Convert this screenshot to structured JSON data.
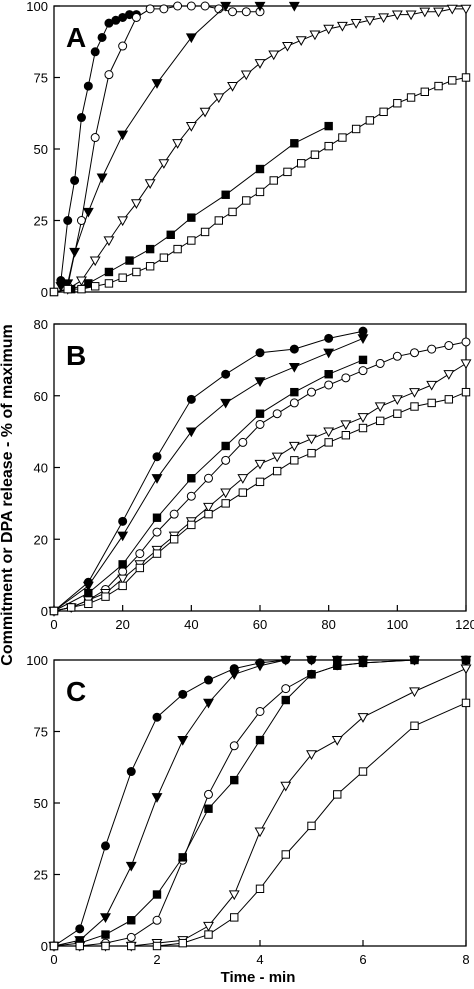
{
  "figure": {
    "ylabel": "Commitment or DPA release - % of maximum",
    "xlabel": "Time - min"
  },
  "chart_data": [
    {
      "type": "line",
      "panel_label": "A",
      "xlim": [
        0,
        120
      ],
      "ylim": [
        0,
        100
      ],
      "xticks": [],
      "yticks": [
        0,
        25,
        50,
        75,
        100
      ],
      "series": [
        {
          "marker": "filled-circle",
          "x": [
            2,
            4,
            6,
            8,
            10,
            12,
            14,
            16,
            18,
            20,
            22,
            24
          ],
          "y": [
            4,
            25,
            39,
            61,
            72,
            84,
            89,
            94,
            95,
            96,
            97,
            97
          ]
        },
        {
          "marker": "open-circle",
          "x": [
            4,
            8,
            12,
            16,
            20,
            24,
            28,
            32,
            36,
            40,
            44,
            48,
            52,
            56,
            60
          ],
          "y": [
            2,
            25,
            54,
            76,
            86,
            96,
            99,
            99,
            100,
            100,
            100,
            99,
            98,
            98,
            98
          ]
        },
        {
          "marker": "filled-triangle",
          "x": [
            2,
            4,
            6,
            10,
            14,
            20,
            30,
            40,
            50,
            60,
            70
          ],
          "y": [
            2,
            3,
            14,
            28,
            40,
            55,
            73,
            89,
            100,
            104,
            106
          ]
        },
        {
          "marker": "open-triangle",
          "x": [
            4,
            8,
            12,
            16,
            20,
            24,
            28,
            32,
            36,
            40,
            44,
            48,
            52,
            56,
            60,
            64,
            68,
            72,
            76,
            80,
            84,
            88,
            92,
            96,
            100,
            104,
            108,
            112,
            116,
            120
          ],
          "y": [
            1,
            4,
            11,
            18,
            25,
            31,
            38,
            45,
            52,
            58,
            63,
            68,
            72,
            76,
            80,
            83,
            86,
            88,
            90,
            92,
            93,
            94,
            95,
            96,
            97,
            97,
            98,
            98,
            99,
            99
          ]
        },
        {
          "marker": "filled-square",
          "x": [
            0,
            5,
            10,
            16,
            22,
            28,
            34,
            40,
            50,
            60,
            70,
            80
          ],
          "y": [
            0,
            1,
            3,
            7,
            11,
            15,
            20,
            26,
            34,
            43,
            52,
            58
          ]
        },
        {
          "marker": "open-square",
          "x": [
            0,
            4,
            8,
            12,
            16,
            20,
            24,
            28,
            32,
            36,
            40,
            44,
            48,
            52,
            56,
            60,
            64,
            68,
            72,
            76,
            80,
            84,
            88,
            92,
            96,
            100,
            104,
            108,
            112,
            116,
            120
          ],
          "y": [
            0,
            1,
            1,
            2,
            3,
            5,
            7,
            9,
            12,
            15,
            18,
            21,
            25,
            28,
            32,
            35,
            39,
            42,
            45,
            48,
            51,
            54,
            57,
            60,
            63,
            66,
            68,
            70,
            72,
            74,
            75
          ]
        }
      ]
    },
    {
      "type": "line",
      "panel_label": "B",
      "xlim": [
        0,
        120
      ],
      "ylim": [
        0,
        80
      ],
      "xticks": [
        0,
        20,
        40,
        60,
        80,
        100,
        120
      ],
      "yticks": [
        0,
        20,
        40,
        60,
        80
      ],
      "series": [
        {
          "marker": "filled-circle",
          "x": [
            0,
            10,
            20,
            30,
            40,
            50,
            60,
            70,
            80,
            90
          ],
          "y": [
            0,
            8,
            25,
            43,
            59,
            66,
            72,
            73,
            76,
            78
          ]
        },
        {
          "marker": "open-circle",
          "x": [
            0,
            5,
            10,
            15,
            20,
            25,
            30,
            35,
            40,
            45,
            50,
            55,
            60,
            65,
            70,
            75,
            80,
            85,
            90,
            95,
            100,
            105,
            110,
            115,
            120
          ],
          "y": [
            0,
            1,
            3,
            6,
            11,
            16,
            22,
            27,
            32,
            37,
            42,
            47,
            52,
            55,
            58,
            61,
            63,
            65,
            67,
            69,
            71,
            72,
            73,
            74,
            75
          ]
        },
        {
          "marker": "filled-triangle",
          "x": [
            0,
            10,
            20,
            30,
            40,
            50,
            60,
            70,
            80,
            90
          ],
          "y": [
            0,
            7,
            21,
            37,
            50,
            58,
            64,
            68,
            72,
            76
          ]
        },
        {
          "marker": "open-triangle",
          "x": [
            0,
            5,
            10,
            15,
            20,
            25,
            30,
            35,
            40,
            45,
            50,
            55,
            60,
            65,
            70,
            75,
            80,
            85,
            90,
            95,
            100,
            105,
            110,
            115,
            120
          ],
          "y": [
            0,
            1,
            3,
            5,
            9,
            13,
            17,
            21,
            25,
            29,
            33,
            37,
            41,
            43,
            46,
            48,
            50,
            52,
            54,
            57,
            59,
            61,
            63,
            66,
            69
          ]
        },
        {
          "marker": "filled-square",
          "x": [
            0,
            10,
            20,
            30,
            40,
            50,
            60,
            70,
            80,
            90
          ],
          "y": [
            0,
            5,
            13,
            26,
            37,
            46,
            55,
            61,
            66,
            70
          ]
        },
        {
          "marker": "open-square",
          "x": [
            0,
            5,
            10,
            15,
            20,
            25,
            30,
            35,
            40,
            45,
            50,
            55,
            60,
            65,
            70,
            75,
            80,
            85,
            90,
            95,
            100,
            105,
            110,
            115,
            120
          ],
          "y": [
            0,
            1,
            2,
            4,
            7,
            12,
            16,
            20,
            24,
            27,
            30,
            33,
            36,
            39,
            42,
            44,
            47,
            49,
            51,
            53,
            55,
            57,
            58,
            59,
            61
          ]
        }
      ]
    },
    {
      "type": "line",
      "panel_label": "C",
      "xlim": [
        0,
        8
      ],
      "ylim": [
        0,
        100
      ],
      "xticks": [
        0,
        2,
        4,
        6,
        8
      ],
      "yticks": [
        0,
        25,
        50,
        75,
        100
      ],
      "series": [
        {
          "marker": "filled-circle",
          "x": [
            0,
            0.5,
            1,
            1.5,
            2,
            2.5,
            3,
            3.5,
            4,
            4.5,
            5,
            5.5,
            6,
            7,
            8
          ],
          "y": [
            0,
            6,
            35,
            61,
            80,
            88,
            93,
            97,
            99,
            100,
            100,
            100,
            100,
            100,
            100
          ]
        },
        {
          "marker": "open-circle",
          "x": [
            0,
            0.5,
            1,
            1.5,
            2,
            2.5,
            3,
            3.5,
            4,
            4.5,
            5,
            5.5,
            6,
            7,
            8
          ],
          "y": [
            0,
            0,
            1,
            3,
            9,
            30,
            53,
            70,
            82,
            90,
            95,
            98,
            99,
            100,
            100
          ]
        },
        {
          "marker": "filled-triangle",
          "x": [
            0,
            0.5,
            1,
            1.5,
            2,
            2.5,
            3,
            3.5,
            4,
            4.5,
            5,
            5.5,
            6,
            7,
            8
          ],
          "y": [
            0,
            2,
            10,
            28,
            52,
            72,
            85,
            95,
            98,
            100,
            100,
            100,
            100,
            100,
            100
          ]
        },
        {
          "marker": "open-triangle",
          "x": [
            0,
            0.5,
            1,
            1.5,
            2,
            2.5,
            3,
            3.5,
            4,
            4.5,
            5,
            5.5,
            6,
            7,
            8
          ],
          "y": [
            0,
            0,
            0,
            0,
            1,
            2,
            7,
            18,
            40,
            56,
            67,
            72,
            80,
            89,
            97
          ]
        },
        {
          "marker": "filled-square",
          "x": [
            0,
            0.5,
            1,
            1.5,
            2,
            2.5,
            3,
            3.5,
            4,
            4.5,
            5,
            5.5,
            6,
            7,
            8
          ],
          "y": [
            0,
            1,
            4,
            9,
            18,
            31,
            48,
            58,
            72,
            86,
            95,
            98,
            99,
            100,
            100
          ]
        },
        {
          "marker": "open-square",
          "x": [
            0,
            0.5,
            1,
            1.5,
            2,
            2.5,
            3,
            3.5,
            4,
            4.5,
            5,
            5.5,
            6,
            7,
            8
          ],
          "y": [
            0,
            0,
            0,
            0,
            0,
            1,
            4,
            10,
            20,
            32,
            42,
            53,
            61,
            77,
            85
          ]
        }
      ]
    }
  ]
}
